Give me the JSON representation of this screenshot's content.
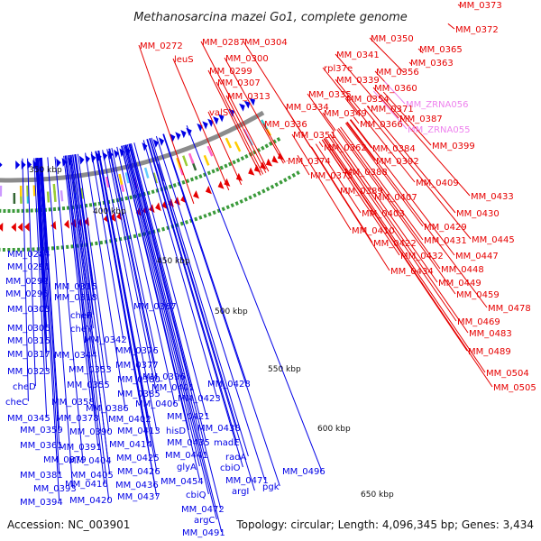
{
  "title": "Methanosarcina mazei Go1, complete genome",
  "footer": {
    "accession": "Accession: NC_003901",
    "topology": "Topology: circular; Length: 4,096,345 bp; Genes: 3,434"
  },
  "colors": {
    "forward": "#e60000",
    "reverse": "#0000e6",
    "rna": "#ee82ee",
    "backbone": "#8c8c8c",
    "tick": "#3a9a3a"
  },
  "scale_labels": [
    "350 kbp",
    "400 kbp",
    "450 kbp",
    "500 kbp",
    "550 kbp",
    "600 kbp",
    "650 kbp"
  ],
  "forward_labels": [
    "MM_0373",
    "MM_0372",
    "MM_0272",
    "MM_0287",
    "MM_0304",
    "leuS",
    "MM_0300",
    "MM_0299",
    "MM_0307",
    "MM_0313",
    "valS",
    "MM_0350",
    "MM_0365",
    "MM_0341",
    "MM_0363",
    "rpl37e",
    "MM_0356",
    "MM_0339",
    "MM_0360",
    "MM_0335",
    "MM_0354",
    "MM_0334",
    "MM_0349",
    "MM_0371",
    "MM_0336",
    "MM_0366",
    "MM_0387",
    "MM_0351",
    "MM_0362",
    "MM_0384",
    "MM_0399",
    "MM_0374",
    "MM_0392",
    "MM_0375",
    "MM_0388",
    "MM_0409",
    "MM_0389",
    "MM_0407",
    "MM_0433",
    "MM_0403",
    "MM_0430",
    "MM_0410",
    "MM_0429",
    "MM_0445",
    "MM_0422",
    "MM_0431",
    "MM_0432",
    "MM_0447",
    "MM_0434",
    "MM_0448",
    "MM_0449",
    "MM_0459",
    "MM_0478",
    "MM_0469",
    "MM_0483",
    "MM_0489",
    "MM_0504",
    "MM_0505"
  ],
  "rna_labels": [
    "MM_ZRNA056",
    "MM_ZRNA055"
  ],
  "reverse_labels": [
    "MM_0284",
    "MM_0291",
    "MM_0292",
    "MM_0315",
    "MM_0295",
    "MM_0318",
    "MM_0303",
    "MM_0367",
    "cheR",
    "MM_0306",
    "cheY",
    "MM_0316",
    "MM_0342",
    "MM_0376",
    "MM_0317",
    "MM_0344",
    "MM_0377",
    "MM_0323",
    "MM_0353",
    "MM_0380",
    "MM_0396",
    "cheD",
    "MM_0355",
    "MM_0385",
    "MM_0401",
    "MM_0428",
    "cheC",
    "MM_0358",
    "MM_0406",
    "MM_0423",
    "MM_0386",
    "MM_0402",
    "MM_0421",
    "MM_0345",
    "MM_0378",
    "MM_0359",
    "MM_0390",
    "MM_0413",
    "hisD",
    "MM_0438",
    "MM_0361",
    "MM_0391",
    "MM_0414",
    "MM_0435",
    "madE",
    "MM_0379",
    "MM_0404",
    "MM_0425",
    "MM_0441",
    "radA",
    "MM_0381",
    "MM_0405",
    "MM_0426",
    "glyA",
    "cbiO",
    "MM_0393",
    "MM_0416",
    "MM_0436",
    "MM_0454",
    "MM_0471",
    "MM_0496",
    "MM_0394",
    "MM_0420",
    "MM_0437",
    "cbiQ",
    "argI",
    "pgk",
    "MM_0472",
    "argC",
    "MM_0491"
  ]
}
